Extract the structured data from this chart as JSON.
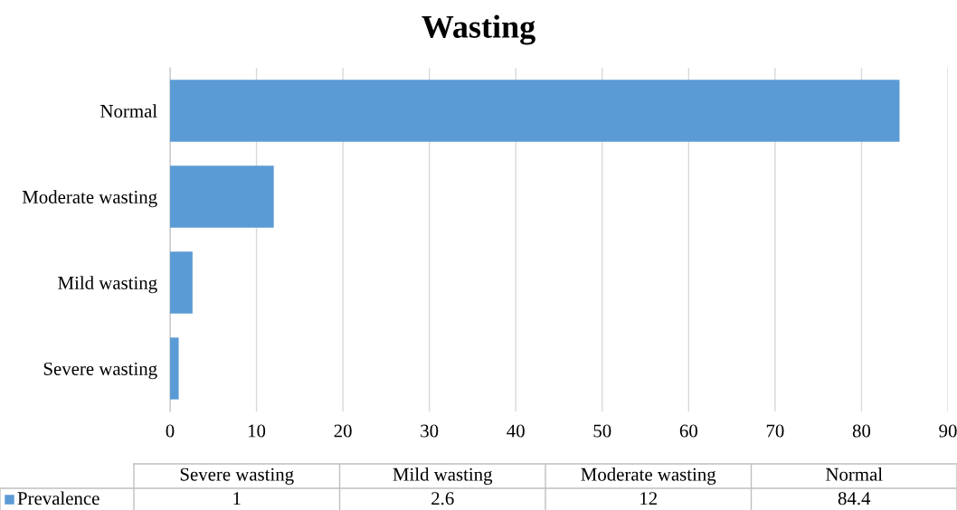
{
  "chart_data": {
    "type": "bar",
    "orientation": "horizontal",
    "title": "Wasting",
    "categories": [
      "Normal",
      "Moderate wasting",
      "Mild wasting",
      "Severe wasting"
    ],
    "series": [
      {
        "name": "Prevalence",
        "color": "#5b9bd5",
        "values": [
          84.4,
          12,
          2.6,
          1
        ]
      }
    ],
    "xlim": [
      0,
      90
    ],
    "xticks": [
      0,
      10,
      20,
      30,
      40,
      50,
      60,
      70,
      80,
      90
    ],
    "annotations": [
      "1",
      "2.6",
      "12",
      "84.4"
    ],
    "grid": "x",
    "legend": "bottom"
  }
}
